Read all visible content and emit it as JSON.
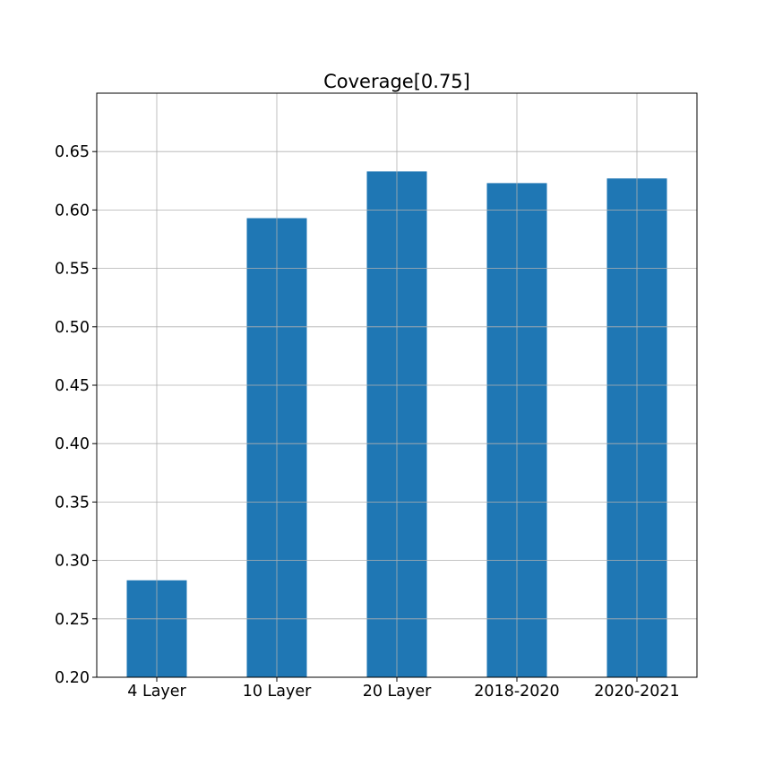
{
  "chart_data": {
    "type": "bar",
    "title": "Coverage[0.75]",
    "xlabel": "",
    "ylabel": "",
    "categories": [
      "4 Layer",
      "10 Layer",
      "20 Layer",
      "2018-2020",
      "2020-2021"
    ],
    "values": [
      0.283,
      0.593,
      0.633,
      0.623,
      0.627
    ],
    "ylim": [
      0.2,
      0.7
    ],
    "yticks": [
      "0.20",
      "0.25",
      "0.30",
      "0.35",
      "0.40",
      "0.45",
      "0.50",
      "0.55",
      "0.60",
      "0.65"
    ],
    "grid": true,
    "legend": "none",
    "bar_color": "#1f77b4",
    "grid_color": "#b0b0b0"
  }
}
